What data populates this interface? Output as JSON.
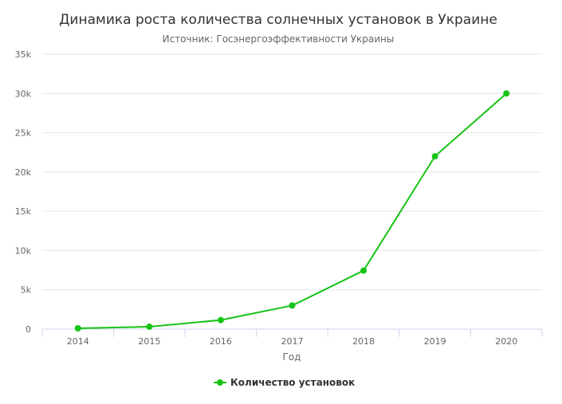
{
  "chart_data": {
    "type": "line",
    "title": "Динамика роста количества солнечных установок в Украине",
    "subtitle": "Источник: Госэнергоэффективности Украины",
    "xlabel": "Год",
    "ylabel": "",
    "categories": [
      "2014",
      "2015",
      "2016",
      "2017",
      "2018",
      "2019",
      "2020"
    ],
    "series": [
      {
        "name": "Количество установок",
        "color": "#17c317",
        "values": [
          100,
          300,
          1150,
          3000,
          7450,
          22000,
          30000
        ]
      }
    ],
    "ylim": [
      0,
      35000
    ],
    "y_ticks": [
      0,
      5000,
      10000,
      15000,
      20000,
      25000,
      30000,
      35000
    ],
    "y_tick_labels": [
      "0",
      "5k",
      "10k",
      "15k",
      "20k",
      "25k",
      "30k",
      "35k"
    ],
    "grid": true,
    "legend_position": "bottom-center"
  }
}
